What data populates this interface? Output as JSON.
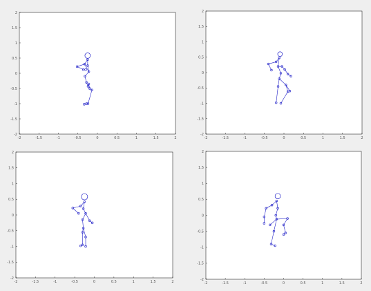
{
  "figure": {
    "background": "#efefef",
    "axes_background": "#ffffff",
    "axes_color": "#000000",
    "skeleton_color": "#2323c8"
  },
  "chart_data": [
    {
      "type": "scatter",
      "title": "",
      "xlabel": "",
      "ylabel": "",
      "xlim": [
        -2,
        2
      ],
      "ylim": [
        -2,
        2
      ],
      "xticks": [
        "-2",
        "-1.5",
        "-1",
        "-0.5",
        "0",
        "0.5",
        "1",
        "1.5",
        "2"
      ],
      "yticks": [
        "2",
        "1.5",
        "1",
        "0.5",
        "0",
        "-0.5",
        "-1",
        "-1.5",
        "-2"
      ],
      "grid": false,
      "head": {
        "x": -0.25,
        "y": 0.58,
        "r": 0.07
      },
      "points": [
        [
          -0.25,
          0.45
        ],
        [
          -0.33,
          0.3
        ],
        [
          -0.52,
          0.22
        ],
        [
          -0.36,
          0.12
        ],
        [
          -0.3,
          0.12
        ],
        [
          -0.25,
          0.25
        ],
        [
          -0.22,
          0.05
        ],
        [
          -0.22,
          -0.35
        ],
        [
          -0.32,
          -0.1
        ],
        [
          -0.28,
          -0.3
        ],
        [
          -0.24,
          -0.43
        ],
        [
          -0.2,
          -0.5
        ],
        [
          -0.14,
          -0.55
        ],
        [
          -0.24,
          -1.0
        ],
        [
          -0.28,
          -1.0
        ],
        [
          -0.34,
          -1.02
        ]
      ],
      "edges": [
        [
          0,
          1
        ],
        [
          1,
          2
        ],
        [
          2,
          3
        ],
        [
          0,
          5
        ],
        [
          5,
          6
        ],
        [
          1,
          6
        ],
        [
          6,
          8
        ],
        [
          8,
          9
        ],
        [
          9,
          10
        ],
        [
          10,
          7
        ],
        [
          7,
          11
        ],
        [
          11,
          12
        ],
        [
          12,
          13
        ],
        [
          13,
          14
        ],
        [
          14,
          15
        ]
      ]
    },
    {
      "type": "scatter",
      "title": "",
      "xlabel": "",
      "ylabel": "",
      "xlim": [
        -2,
        2
      ],
      "ylim": [
        -2,
        2
      ],
      "xticks": [
        "-2",
        "-1.5",
        "-1",
        "-0.5",
        "0",
        "0.5",
        "1",
        "1.5",
        "2"
      ],
      "yticks": [
        "2",
        "1.5",
        "1",
        "0.5",
        "0",
        "-0.5",
        "-1",
        "-1.5",
        "-2"
      ],
      "grid": false,
      "head": {
        "x": -0.1,
        "y": 0.6,
        "r": 0.06
      },
      "points": [
        [
          -0.12,
          0.48
        ],
        [
          -0.2,
          0.35
        ],
        [
          -0.4,
          0.28
        ],
        [
          -0.32,
          0.08
        ],
        [
          -0.15,
          0.2
        ],
        [
          -0.05,
          0.2
        ],
        [
          0.02,
          0.1
        ],
        [
          -0.08,
          -0.02
        ],
        [
          0.1,
          -0.05
        ],
        [
          0.18,
          -0.12
        ],
        [
          -0.12,
          -0.2
        ],
        [
          -0.15,
          -0.45
        ],
        [
          0.05,
          -0.4
        ],
        [
          0.1,
          -0.62
        ],
        [
          -0.08,
          -1.0
        ],
        [
          -0.2,
          -0.98
        ],
        [
          0.15,
          -0.6
        ]
      ],
      "edges": [
        [
          0,
          1
        ],
        [
          1,
          2
        ],
        [
          2,
          3
        ],
        [
          0,
          4
        ],
        [
          4,
          5
        ],
        [
          5,
          6
        ],
        [
          6,
          8
        ],
        [
          8,
          9
        ],
        [
          4,
          7
        ],
        [
          7,
          10
        ],
        [
          10,
          11
        ],
        [
          11,
          15
        ],
        [
          10,
          12
        ],
        [
          12,
          13
        ],
        [
          12,
          16
        ],
        [
          13,
          14
        ]
      ]
    },
    {
      "type": "scatter",
      "title": "",
      "xlabel": "",
      "ylabel": "",
      "xlim": [
        -2,
        2
      ],
      "ylim": [
        -2,
        2
      ],
      "xticks": [
        "-2",
        "-1.5",
        "-1",
        "-0.5",
        "0",
        "0.5",
        "1",
        "1.5",
        "2"
      ],
      "yticks": [
        "2",
        "1.5",
        "1",
        "0.5",
        "0",
        "-0.5",
        "-1",
        "-1.5",
        "-2"
      ],
      "grid": false,
      "head": {
        "x": -0.25,
        "y": 0.58,
        "r": 0.08
      },
      "points": [
        [
          -0.25,
          0.42
        ],
        [
          -0.35,
          0.28
        ],
        [
          -0.55,
          0.22
        ],
        [
          -0.4,
          0.05
        ],
        [
          -0.28,
          0.2
        ],
        [
          -0.22,
          0.05
        ],
        [
          -0.3,
          -0.15
        ],
        [
          -0.12,
          -0.18
        ],
        [
          -0.05,
          -0.25
        ],
        [
          -0.28,
          -0.42
        ],
        [
          -0.3,
          -0.55
        ],
        [
          -0.3,
          -0.95
        ],
        [
          -0.35,
          -0.98
        ],
        [
          -0.22,
          -1.0
        ],
        [
          -0.22,
          -0.7
        ]
      ],
      "edges": [
        [
          0,
          1
        ],
        [
          1,
          2
        ],
        [
          2,
          3
        ],
        [
          0,
          4
        ],
        [
          4,
          5
        ],
        [
          5,
          6
        ],
        [
          5,
          7
        ],
        [
          7,
          8
        ],
        [
          6,
          9
        ],
        [
          9,
          10
        ],
        [
          10,
          11
        ],
        [
          11,
          12
        ],
        [
          9,
          14
        ],
        [
          14,
          13
        ]
      ]
    },
    {
      "type": "scatter",
      "title": "",
      "xlabel": "",
      "ylabel": "",
      "xlim": [
        -2,
        2
      ],
      "ylim": [
        -2,
        2
      ],
      "xticks": [
        "-2",
        "-1.5",
        "-1",
        "-0.5",
        "0",
        "0.5",
        "1",
        "1.5",
        "2"
      ],
      "yticks": [
        "2",
        "1.5",
        "1",
        "0.5",
        "0",
        "-0.5",
        "-1",
        "-1.5",
        "-2"
      ],
      "grid": false,
      "head": {
        "x": -0.15,
        "y": 0.6,
        "r": 0.07
      },
      "points": [
        [
          -0.18,
          0.45
        ],
        [
          -0.3,
          0.32
        ],
        [
          -0.45,
          0.22
        ],
        [
          -0.5,
          -0.05
        ],
        [
          -0.5,
          -0.25
        ],
        [
          -0.15,
          0.22
        ],
        [
          -0.2,
          0.0
        ],
        [
          -0.35,
          -0.3
        ],
        [
          -0.18,
          -0.12
        ],
        [
          0.1,
          -0.1
        ],
        [
          0.0,
          -0.3
        ],
        [
          -0.25,
          -0.5
        ],
        [
          -0.32,
          -0.9
        ],
        [
          -0.22,
          -0.95
        ],
        [
          0.05,
          -0.55
        ],
        [
          0.0,
          -0.6
        ]
      ],
      "edges": [
        [
          0,
          1
        ],
        [
          1,
          2
        ],
        [
          2,
          3
        ],
        [
          3,
          4
        ],
        [
          0,
          5
        ],
        [
          5,
          6
        ],
        [
          6,
          8
        ],
        [
          8,
          7
        ],
        [
          8,
          9
        ],
        [
          9,
          10
        ],
        [
          10,
          14
        ],
        [
          8,
          11
        ],
        [
          11,
          12
        ],
        [
          12,
          13
        ],
        [
          14,
          15
        ]
      ]
    }
  ]
}
